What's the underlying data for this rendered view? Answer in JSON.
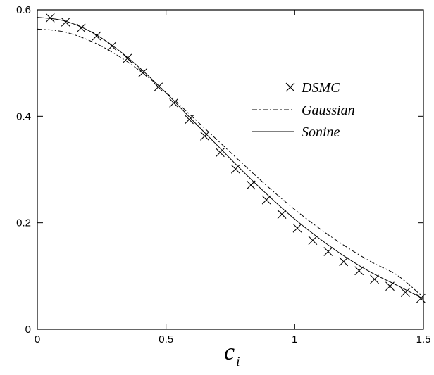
{
  "chart_data": {
    "type": "line",
    "title": "",
    "xlabel": "c",
    "xlabel_subscript": "i",
    "ylabel": "",
    "xlim": [
      0,
      1.5
    ],
    "ylim": [
      0,
      0.6
    ],
    "xticks": [
      0,
      0.5,
      1,
      1.5
    ],
    "xtick_labels": [
      "0",
      "0.5",
      "1",
      "1.5"
    ],
    "yticks": [
      0,
      0.2,
      0.4,
      0.6
    ],
    "ytick_labels": [
      "0",
      "0.2",
      "0.4",
      "0.6"
    ],
    "grid": false,
    "legend_position": "top-right",
    "series": [
      {
        "name": "DSMC",
        "style": "markers-x",
        "x": [
          0.05,
          0.11,
          0.17,
          0.23,
          0.29,
          0.35,
          0.41,
          0.47,
          0.53,
          0.59,
          0.65,
          0.71,
          0.77,
          0.83,
          0.89,
          0.95,
          1.01,
          1.07,
          1.13,
          1.19,
          1.25,
          1.31,
          1.37,
          1.43,
          1.49
        ],
        "y": [
          0.585,
          0.577,
          0.566,
          0.551,
          0.532,
          0.509,
          0.482,
          0.455,
          0.425,
          0.394,
          0.363,
          0.332,
          0.301,
          0.271,
          0.243,
          0.216,
          0.19,
          0.167,
          0.146,
          0.127,
          0.11,
          0.094,
          0.081,
          0.069,
          0.058
        ]
      },
      {
        "name": "Gaussian",
        "style": "dash-dot",
        "x": [
          0,
          0.1,
          0.2,
          0.3,
          0.4,
          0.5,
          0.6,
          0.7,
          0.8,
          0.9,
          1.0,
          1.1,
          1.2,
          1.3,
          1.4,
          1.5
        ],
        "y": [
          0.564,
          0.559,
          0.543,
          0.518,
          0.485,
          0.445,
          0.4,
          0.355,
          0.31,
          0.266,
          0.225,
          0.188,
          0.155,
          0.126,
          0.101,
          0.06
        ]
      },
      {
        "name": "Sonine",
        "style": "solid",
        "x": [
          0,
          0.1,
          0.2,
          0.3,
          0.4,
          0.5,
          0.6,
          0.7,
          0.8,
          0.9,
          1.0,
          1.1,
          1.2,
          1.3,
          1.4,
          1.5
        ],
        "y": [
          0.586,
          0.58,
          0.561,
          0.53,
          0.49,
          0.444,
          0.394,
          0.345,
          0.296,
          0.25,
          0.207,
          0.169,
          0.135,
          0.106,
          0.082,
          0.057
        ]
      }
    ]
  }
}
